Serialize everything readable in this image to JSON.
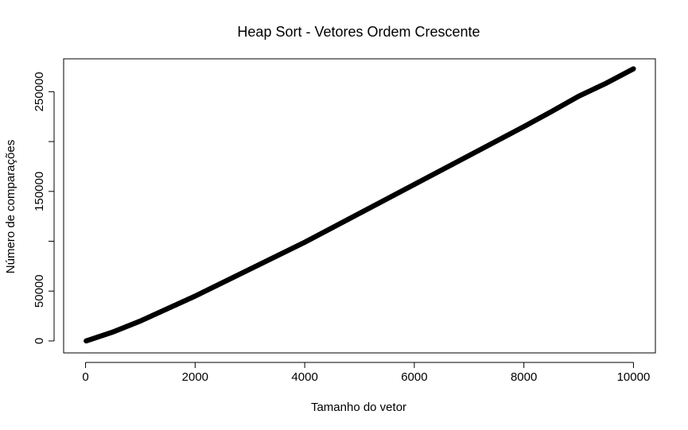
{
  "chart_data": {
    "type": "scatter",
    "title": "Heap Sort - Vetores Ordem Crescente",
    "xlabel": "Tamanho do vetor",
    "ylabel": "Número de comparações",
    "xlim": [
      -400,
      10400
    ],
    "ylim": [
      -12000,
      283000
    ],
    "x_ticks": [
      0,
      2000,
      4000,
      6000,
      8000,
      10000
    ],
    "x_tick_labels": [
      "0",
      "2000",
      "4000",
      "6000",
      "8000",
      "10000"
    ],
    "y_ticks": [
      0,
      50000,
      100000,
      150000,
      200000,
      250000
    ],
    "y_tick_labels": [
      "0",
      "50000",
      "",
      "150000",
      "",
      "250000"
    ],
    "series": [
      {
        "marker": "open-circle",
        "color": "#000000",
        "x": [
          10,
          500,
          1000,
          1500,
          2000,
          2500,
          3000,
          3500,
          4000,
          4500,
          5000,
          5500,
          6000,
          6500,
          7000,
          7500,
          8000,
          8500,
          9000,
          9500,
          10000
        ],
        "y": [
          0,
          9000,
          20000,
          32500,
          45000,
          58500,
          72000,
          85500,
          99000,
          113500,
          128000,
          142500,
          157000,
          171500,
          186000,
          200500,
          215000,
          230000,
          245500,
          258500,
          273000
        ]
      }
    ],
    "grid": false,
    "legend": "none"
  }
}
